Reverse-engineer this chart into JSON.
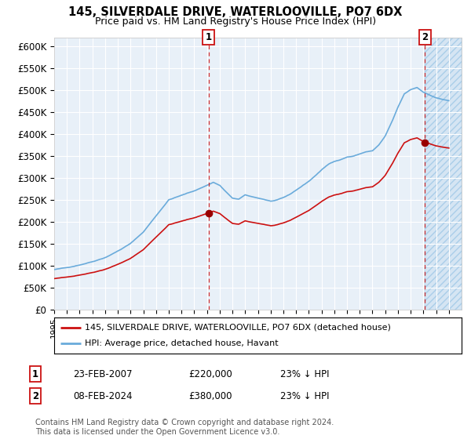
{
  "title": "145, SILVERDALE DRIVE, WATERLOOVILLE, PO7 6DX",
  "subtitle": "Price paid vs. HM Land Registry's House Price Index (HPI)",
  "ylim": [
    0,
    620000
  ],
  "yticks": [
    0,
    50000,
    100000,
    150000,
    200000,
    250000,
    300000,
    350000,
    400000,
    450000,
    500000,
    550000,
    600000
  ],
  "ytick_labels": [
    "£0",
    "£50K",
    "£100K",
    "£150K",
    "£200K",
    "£250K",
    "£300K",
    "£350K",
    "£400K",
    "£450K",
    "£500K",
    "£550K",
    "£600K"
  ],
  "background_color": "#ffffff",
  "plot_bg_color": "#e8f0f8",
  "hpi_color": "#6aabdb",
  "price_color": "#cc1111",
  "marker_color": "#990000",
  "sale1_year": 2007.12,
  "sale1_price": 220000,
  "sale2_year": 2024.12,
  "sale2_price": 380000,
  "legend_line1": "145, SILVERDALE DRIVE, WATERLOOVILLE, PO7 6DX (detached house)",
  "legend_line2": "HPI: Average price, detached house, Havant",
  "annotation1_date": "23-FEB-2007",
  "annotation1_price": "£220,000",
  "annotation1_hpi": "23% ↓ HPI",
  "annotation2_date": "08-FEB-2024",
  "annotation2_price": "£380,000",
  "annotation2_hpi": "23% ↓ HPI",
  "footnote": "Contains HM Land Registry data © Crown copyright and database right 2024.\nThis data is licensed under the Open Government Licence v3.0.",
  "x_min": 1995,
  "x_max": 2027
}
